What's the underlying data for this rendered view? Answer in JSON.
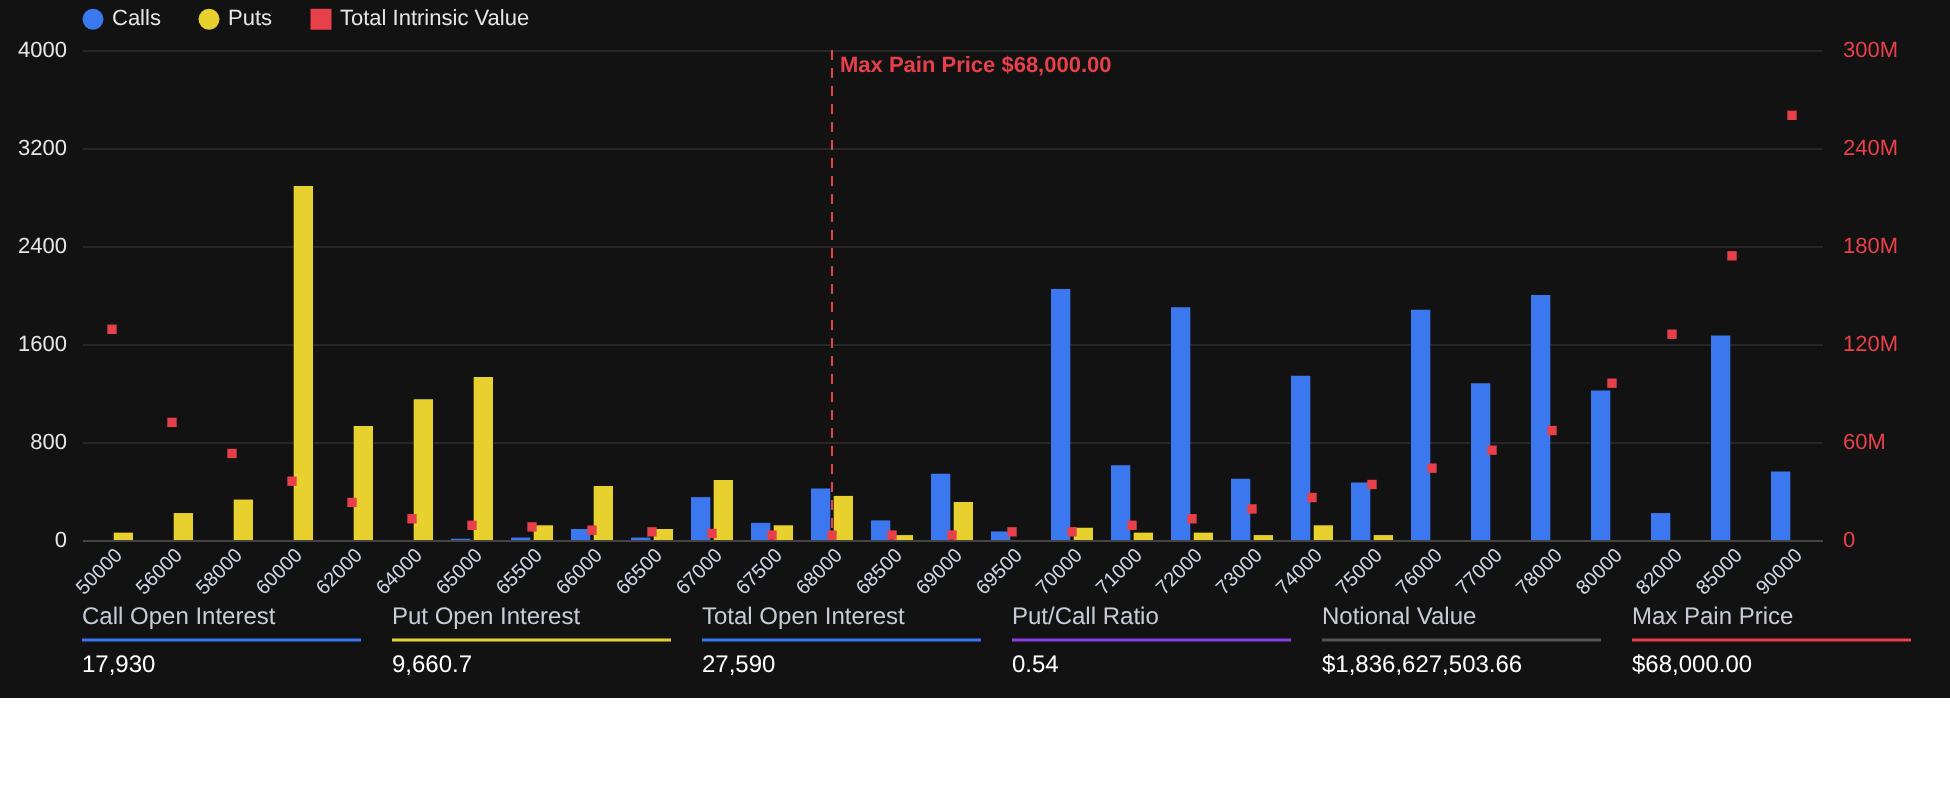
{
  "chart_data": {
    "type": "bar",
    "categories": [
      "50000",
      "56000",
      "58000",
      "60000",
      "62000",
      "64000",
      "65000",
      "65500",
      "66000",
      "66500",
      "67000",
      "67500",
      "68000",
      "68500",
      "69000",
      "69500",
      "70000",
      "71000",
      "72000",
      "73000",
      "74000",
      "75000",
      "76000",
      "77000",
      "78000",
      "80000",
      "82000",
      "85000",
      "90000"
    ],
    "series": [
      {
        "name": "Calls",
        "color": "#3b78f0",
        "values": [
          null,
          null,
          null,
          null,
          null,
          null,
          10,
          20,
          90,
          20,
          350,
          140,
          420,
          160,
          540,
          70,
          2050,
          610,
          1900,
          500,
          1340,
          470,
          1880,
          1280,
          2000,
          1220,
          220,
          1670,
          560
        ]
      },
      {
        "name": "Puts",
        "color": "#e8d12f",
        "values": [
          60,
          220,
          330,
          2890,
          930,
          1150,
          1330,
          120,
          440,
          90,
          490,
          120,
          360,
          40,
          310,
          null,
          100,
          60,
          60,
          40,
          120,
          40,
          null,
          null,
          null,
          null,
          null,
          null,
          null
        ]
      },
      {
        "name": "Total Intrinsic Value",
        "type": "scatter",
        "axis": "y2",
        "marker": "square",
        "color": "#e8404a",
        "values": [
          129,
          72,
          53,
          36,
          23,
          13,
          9,
          8,
          6,
          5,
          4,
          3,
          3,
          3,
          3,
          5,
          5,
          9,
          13,
          19,
          26,
          34,
          44,
          55,
          67,
          96,
          126,
          174,
          260
        ]
      }
    ],
    "ylim": [
      0,
      4000
    ],
    "yticks": [
      0,
      800,
      1600,
      2400,
      3200,
      4000
    ],
    "y2lim": [
      0,
      300
    ],
    "y2ticks": [
      0,
      {
        "value": 60,
        "label": "60M"
      },
      {
        "value": 120,
        "label": "120M"
      },
      {
        "value": 180,
        "label": "180M"
      },
      {
        "value": 240,
        "label": "240M"
      },
      {
        "value": 300,
        "label": "300M"
      }
    ],
    "grid": "y",
    "legend": "top left",
    "ref_lines": [
      {
        "axis": "x",
        "value": "68000",
        "label": "Max Pain Price $68,000.00",
        "color": "#e8404a",
        "line_style": "dashed"
      }
    ],
    "annotations": [
      "Call Open Interest",
      "17,930",
      "Put Open Interest",
      "9,660.7",
      "Total Open Interest",
      "27,590",
      "Put/Call Ratio",
      "0.54",
      "Notional Value",
      "$1,836,627,503.66",
      "Max Pain Price",
      "$68,000.00"
    ]
  }
}
